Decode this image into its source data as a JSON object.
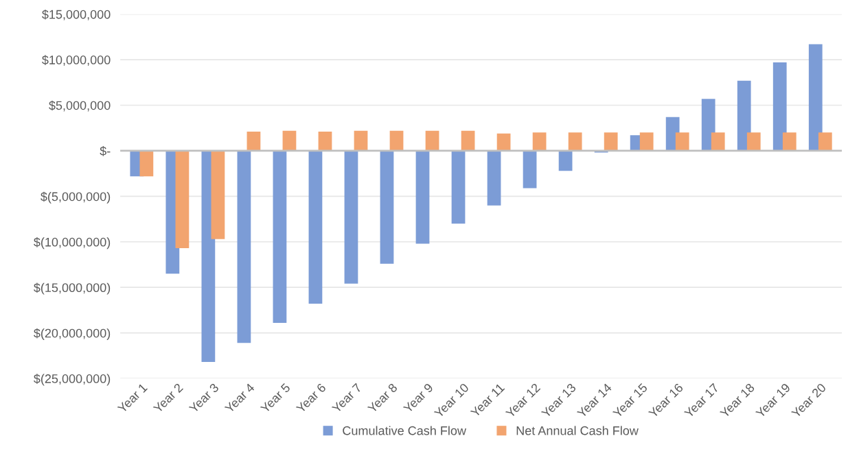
{
  "chart_data": {
    "type": "bar",
    "categories": [
      "Year 1",
      "Year 2",
      "Year 3",
      "Year 4",
      "Year 5",
      "Year 6",
      "Year 7",
      "Year 8",
      "Year 9",
      "Year 10",
      "Year 11",
      "Year 12",
      "Year 13",
      "Year 14",
      "Year 15",
      "Year 16",
      "Year 17",
      "Year 18",
      "Year 19",
      "Year 20"
    ],
    "series": [
      {
        "name": "Cumulative Cash Flow",
        "color": "#7c9cd6",
        "values": [
          -2800000,
          -13500000,
          -23200000,
          -21100000,
          -18900000,
          -16800000,
          -14600000,
          -12400000,
          -10200000,
          -8000000,
          -6000000,
          -4100000,
          -2200000,
          -200000,
          1700000,
          3700000,
          5700000,
          7700000,
          9700000,
          11700000
        ]
      },
      {
        "name": "Net Annual Cash Flow",
        "color": "#f2a46f",
        "values": [
          -2800000,
          -10700000,
          -9700000,
          2100000,
          2200000,
          2100000,
          2200000,
          2200000,
          2200000,
          2200000,
          1900000,
          2000000,
          2000000,
          2000000,
          2000000,
          2000000,
          2000000,
          2000000,
          2000000,
          2000000
        ]
      }
    ],
    "ylim": [
      -25000000,
      15000000
    ],
    "yticks": [
      {
        "value": -25000000,
        "label": "$(25,000,000)"
      },
      {
        "value": -20000000,
        "label": "$(20,000,000)"
      },
      {
        "value": -15000000,
        "label": "$(15,000,000)"
      },
      {
        "value": -10000000,
        "label": "$(10,000,000)"
      },
      {
        "value": -5000000,
        "label": "$(5,000,000)"
      },
      {
        "value": 0,
        "label": "$-"
      },
      {
        "value": 5000000,
        "label": "$5,000,000"
      },
      {
        "value": 10000000,
        "label": "$10,000,000"
      },
      {
        "value": 15000000,
        "label": "$15,000,000"
      }
    ],
    "grid": "y",
    "legend": "bottom"
  }
}
